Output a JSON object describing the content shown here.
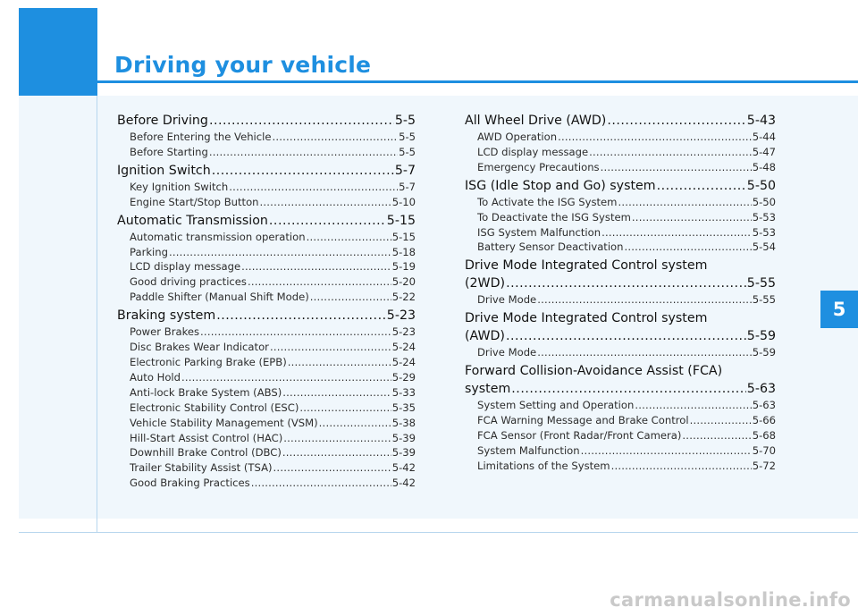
{
  "header": {
    "title": "Driving your vehicle",
    "chapter": "5"
  },
  "left_column": [
    {
      "title": "Before Driving",
      "page": "5-5",
      "items": [
        {
          "label": "Before Entering the Vehicle",
          "page": "5-5"
        },
        {
          "label": "Before Starting",
          "page": "5-5"
        }
      ]
    },
    {
      "title": "Ignition Switch",
      "page": "5-7",
      "items": [
        {
          "label": "Key Ignition Switch",
          "page": "5-7"
        },
        {
          "label": "Engine Start/Stop Button",
          "page": "5-10"
        }
      ]
    },
    {
      "title": "Automatic Transmission",
      "page": "5-15",
      "items": [
        {
          "label": "Automatic transmission operation",
          "page": "5-15"
        },
        {
          "label": "Parking",
          "page": "5-18"
        },
        {
          "label": "LCD display message",
          "page": "5-19"
        },
        {
          "label": "Good driving practices",
          "page": "5-20"
        },
        {
          "label": "Paddle Shifter (Manual Shift Mode)",
          "page": "5-22"
        }
      ]
    },
    {
      "title": "Braking system",
      "page": "5-23",
      "items": [
        {
          "label": "Power Brakes",
          "page": "5-23"
        },
        {
          "label": "Disc Brakes Wear Indicator",
          "page": "5-24"
        },
        {
          "label": "Electronic Parking Brake (EPB)",
          "page": "5-24"
        },
        {
          "label": "Auto Hold",
          "page": "5-29"
        },
        {
          "label": "Anti-lock Brake System (ABS)",
          "page": "5-33"
        },
        {
          "label": "Electronic Stability Control (ESC)",
          "page": "5-35"
        },
        {
          "label": "Vehicle Stability Management (VSM)",
          "page": "5-38"
        },
        {
          "label": "Hill-Start Assist Control (HAC)",
          "page": "5-39"
        },
        {
          "label": "Downhill Brake Control (DBC)",
          "page": "5-39"
        },
        {
          "label": "Trailer Stability Assist (TSA)",
          "page": "5-42"
        },
        {
          "label": "Good Braking Practices",
          "page": "5-42"
        }
      ]
    }
  ],
  "right_column": [
    {
      "title": "All Wheel Drive (AWD)",
      "page": "5-43",
      "items": [
        {
          "label": "AWD Operation",
          "page": "5-44"
        },
        {
          "label": "LCD display message",
          "page": "5-47"
        },
        {
          "label": "Emergency Precautions",
          "page": "5-48"
        }
      ]
    },
    {
      "title": "ISG (Idle Stop and Go) system",
      "page": "5-50",
      "items": [
        {
          "label": "To Activate the ISG System",
          "page": "5-50"
        },
        {
          "label": "To Deactivate the ISG System",
          "page": "5-53"
        },
        {
          "label": "ISG System Malfunction",
          "page": "5-53"
        },
        {
          "label": "Battery Sensor Deactivation",
          "page": "5-54"
        }
      ]
    },
    {
      "title_line1": "Drive Mode Integrated Control system",
      "title": "(2WD)",
      "page": "5-55",
      "items": [
        {
          "label": "Drive Mode",
          "page": "5-55"
        }
      ]
    },
    {
      "title_line1": "Drive Mode Integrated Control system",
      "title": "(AWD)",
      "page": "5-59",
      "items": [
        {
          "label": "Drive Mode",
          "page": "5-59"
        }
      ]
    },
    {
      "title_line1": "Forward Collision-Avoidance Assist (FCA)",
      "title": "system",
      "page": "5-63",
      "items": [
        {
          "label": "System Setting and Operation",
          "page": "5-63"
        },
        {
          "label": "FCA Warning Message and Brake Control",
          "page": "5-66"
        },
        {
          "label": "FCA Sensor (Front Radar/Front Camera)",
          "page": "5-68"
        },
        {
          "label": "System Malfunction",
          "page": "5-70"
        },
        {
          "label": "Limitations of the System",
          "page": "5-72"
        }
      ]
    }
  ],
  "watermark": "carmanualsonline.info",
  "colors": {
    "accent": "#1e8fe0",
    "panel": "#f0f7fc"
  }
}
